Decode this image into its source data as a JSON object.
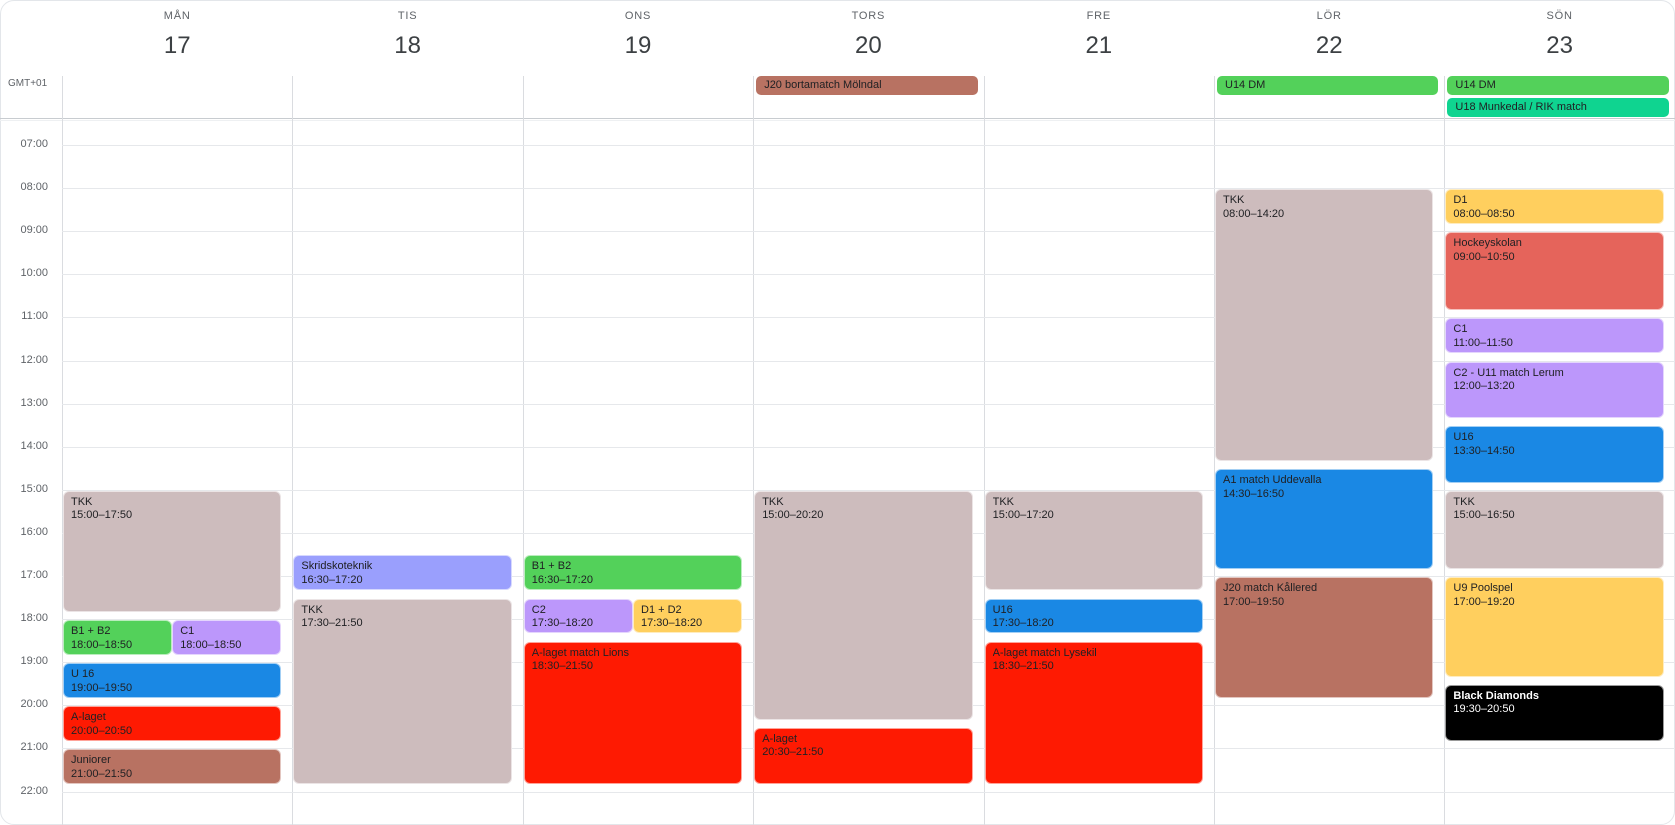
{
  "timezone": "GMT+01",
  "days": [
    {
      "dow": "MÅN",
      "num": "17"
    },
    {
      "dow": "TIS",
      "num": "18"
    },
    {
      "dow": "ONS",
      "num": "19"
    },
    {
      "dow": "TORS",
      "num": "20"
    },
    {
      "dow": "FRE",
      "num": "21"
    },
    {
      "dow": "LÖR",
      "num": "22"
    },
    {
      "dow": "SÖN",
      "num": "23"
    }
  ],
  "hours": [
    "07:00",
    "08:00",
    "09:00",
    "10:00",
    "11:00",
    "12:00",
    "13:00",
    "14:00",
    "15:00",
    "16:00",
    "17:00",
    "18:00",
    "19:00",
    "20:00",
    "21:00",
    "22:00"
  ],
  "allday": [
    {
      "day": 3,
      "slot": 0,
      "title": "J20 bortamatch Mölndal",
      "color": "#b87262"
    },
    {
      "day": 5,
      "slot": 0,
      "title": "U14 DM",
      "color": "#53d15a"
    },
    {
      "day": 6,
      "slot": 0,
      "title": "U14 DM",
      "color": "#53d15a"
    },
    {
      "day": 6,
      "slot": 1,
      "title": "U18 Munkedal / RIK match",
      "color": "#0fd490"
    }
  ],
  "events": [
    {
      "day": 0,
      "start": "15:00",
      "end": "17:50",
      "title": "TKK",
      "time": "15:00–17:50",
      "color": "#cdbcbd",
      "col": 0,
      "cols": 1
    },
    {
      "day": 0,
      "start": "18:00",
      "end": "18:50",
      "title": "B1 + B2",
      "time": "18:00–18:50",
      "color": "#53d15a",
      "col": 0,
      "cols": 2
    },
    {
      "day": 0,
      "start": "18:00",
      "end": "18:50",
      "title": "C1",
      "time": "18:00–18:50",
      "color": "#bc97fb",
      "col": 1,
      "cols": 2
    },
    {
      "day": 0,
      "start": "19:00",
      "end": "19:50",
      "title": "U 16",
      "time": "19:00–19:50",
      "color": "#1a88e4",
      "col": 0,
      "cols": 1
    },
    {
      "day": 0,
      "start": "20:00",
      "end": "20:50",
      "title": "A-laget",
      "time": "20:00–20:50",
      "color": "#fe1a02",
      "col": 0,
      "cols": 1
    },
    {
      "day": 0,
      "start": "21:00",
      "end": "21:50",
      "title": "Juniorer",
      "time": "21:00–21:50",
      "color": "#b87262",
      "col": 0,
      "cols": 1
    },
    {
      "day": 1,
      "start": "16:30",
      "end": "17:20",
      "title": "Skridskoteknik",
      "time": "16:30–17:20",
      "color": "#9a9ffd",
      "col": 0,
      "cols": 1
    },
    {
      "day": 1,
      "start": "17:30",
      "end": "21:50",
      "title": "TKK",
      "time": "17:30–21:50",
      "color": "#cdbcbd",
      "col": 0,
      "cols": 1
    },
    {
      "day": 2,
      "start": "16:30",
      "end": "17:20",
      "title": "B1 + B2",
      "time": "16:30–17:20",
      "color": "#53d15a",
      "col": 0,
      "cols": 1
    },
    {
      "day": 2,
      "start": "17:30",
      "end": "18:20",
      "title": "C2",
      "time": "17:30–18:20",
      "color": "#bc97fb",
      "col": 0,
      "cols": 2
    },
    {
      "day": 2,
      "start": "17:30",
      "end": "18:20",
      "title": "D1 + D2",
      "time": "17:30–18:20",
      "color": "#ffcf5e",
      "col": 1,
      "cols": 2
    },
    {
      "day": 2,
      "start": "18:30",
      "end": "21:50",
      "title": "A-laget match Lions",
      "time": "18:30–21:50",
      "color": "#fe1a02",
      "col": 0,
      "cols": 1
    },
    {
      "day": 3,
      "start": "15:00",
      "end": "20:20",
      "title": "TKK",
      "time": "15:00–20:20",
      "color": "#cdbcbd",
      "col": 0,
      "cols": 1
    },
    {
      "day": 3,
      "start": "20:30",
      "end": "21:50",
      "title": "A-laget",
      "time": "20:30–21:50",
      "color": "#fe1a02",
      "col": 0,
      "cols": 1
    },
    {
      "day": 4,
      "start": "15:00",
      "end": "17:20",
      "title": "TKK",
      "time": "15:00–17:20",
      "color": "#cdbcbd",
      "col": 0,
      "cols": 1
    },
    {
      "day": 4,
      "start": "17:30",
      "end": "18:20",
      "title": "U16",
      "time": "17:30–18:20",
      "color": "#1a88e4",
      "col": 0,
      "cols": 1
    },
    {
      "day": 4,
      "start": "18:30",
      "end": "21:50",
      "title": "A-laget match Lysekil",
      "time": "18:30–21:50",
      "color": "#fe1a02",
      "col": 0,
      "cols": 1
    },
    {
      "day": 5,
      "start": "08:00",
      "end": "14:20",
      "title": "TKK",
      "time": "08:00–14:20",
      "color": "#cdbcbd",
      "col": 0,
      "cols": 1
    },
    {
      "day": 5,
      "start": "14:30",
      "end": "16:50",
      "title": "A1 match Uddevalla",
      "time": "14:30–16:50",
      "color": "#1a88e4",
      "col": 0,
      "cols": 1
    },
    {
      "day": 5,
      "start": "17:00",
      "end": "19:50",
      "title": "J20 match Kållered",
      "time": "17:00–19:50",
      "color": "#b87262",
      "col": 0,
      "cols": 1
    },
    {
      "day": 6,
      "start": "08:00",
      "end": "08:50",
      "title": "D1",
      "time": "08:00–08:50",
      "color": "#ffcf5e",
      "col": 0,
      "cols": 1
    },
    {
      "day": 6,
      "start": "09:00",
      "end": "10:50",
      "title": "Hockeyskolan",
      "time": "09:00–10:50",
      "color": "#e5645b",
      "col": 0,
      "cols": 1
    },
    {
      "day": 6,
      "start": "11:00",
      "end": "11:50",
      "title": "C1",
      "time": "11:00–11:50",
      "color": "#bc97fb",
      "col": 0,
      "cols": 1
    },
    {
      "day": 6,
      "start": "12:00",
      "end": "13:20",
      "title": "C2 - U11 match Lerum",
      "time": "12:00–13:20",
      "color": "#bc97fb",
      "col": 0,
      "cols": 1
    },
    {
      "day": 6,
      "start": "13:30",
      "end": "14:50",
      "title": "U16",
      "time": "13:30–14:50",
      "color": "#1a88e4",
      "col": 0,
      "cols": 1
    },
    {
      "day": 6,
      "start": "15:00",
      "end": "16:50",
      "title": "TKK",
      "time": "15:00–16:50",
      "color": "#cdbcbd",
      "col": 0,
      "cols": 1
    },
    {
      "day": 6,
      "start": "17:00",
      "end": "19:20",
      "title": "U9 Poolspel",
      "time": "17:00–19:20",
      "color": "#ffcf5e",
      "col": 0,
      "cols": 1
    },
    {
      "day": 6,
      "start": "19:30",
      "end": "20:50",
      "title": "Black Diamonds",
      "time": "19:30–20:50",
      "color": "#000000",
      "col": 0,
      "cols": 1,
      "dark": true
    }
  ]
}
